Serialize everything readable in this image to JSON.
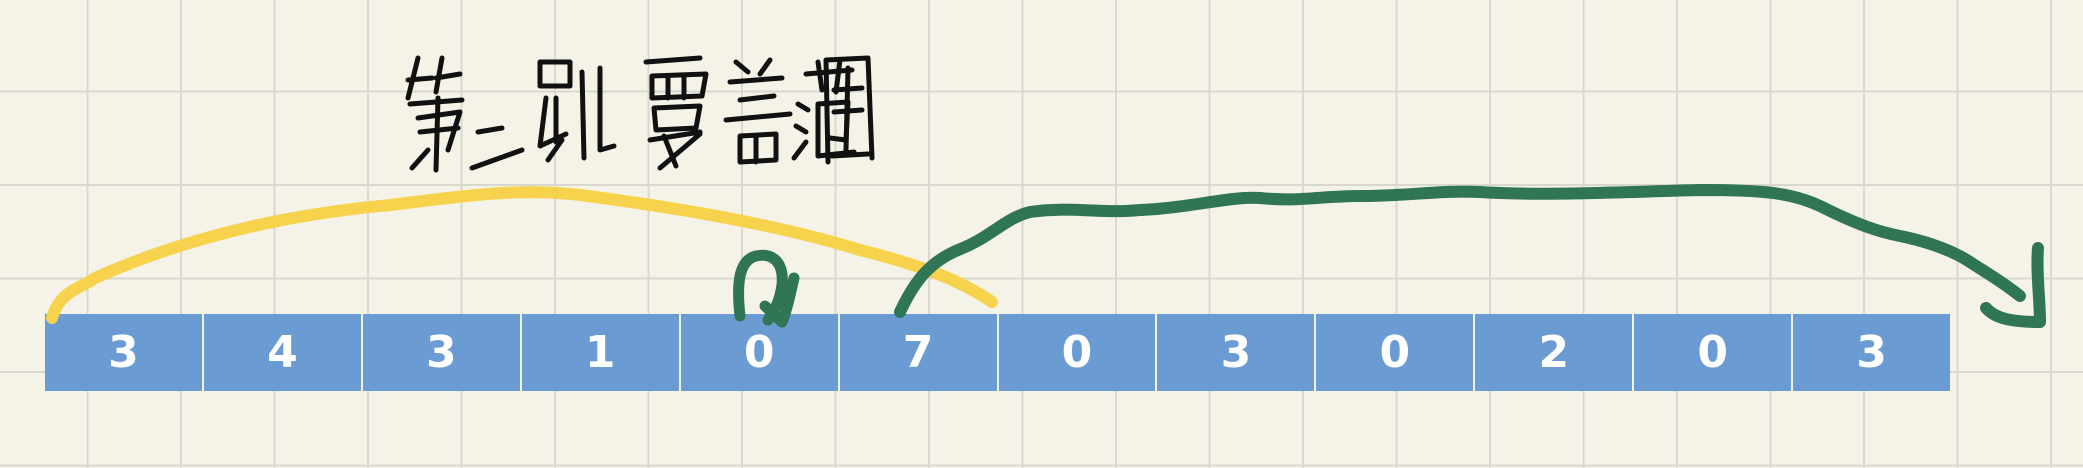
{
  "annotation": {
    "text": "第二跳覆盖范围",
    "color": "#111111"
  },
  "array": {
    "values": [
      "3",
      "4",
      "3",
      "1",
      "0",
      "7",
      "0",
      "3",
      "0",
      "2",
      "0",
      "3"
    ],
    "cell_color": "#6a9bd3",
    "text_color": "#ffffff"
  },
  "arrows": {
    "first_jump_color": "#f7d24c",
    "second_jump_color": "#2f7556"
  }
}
